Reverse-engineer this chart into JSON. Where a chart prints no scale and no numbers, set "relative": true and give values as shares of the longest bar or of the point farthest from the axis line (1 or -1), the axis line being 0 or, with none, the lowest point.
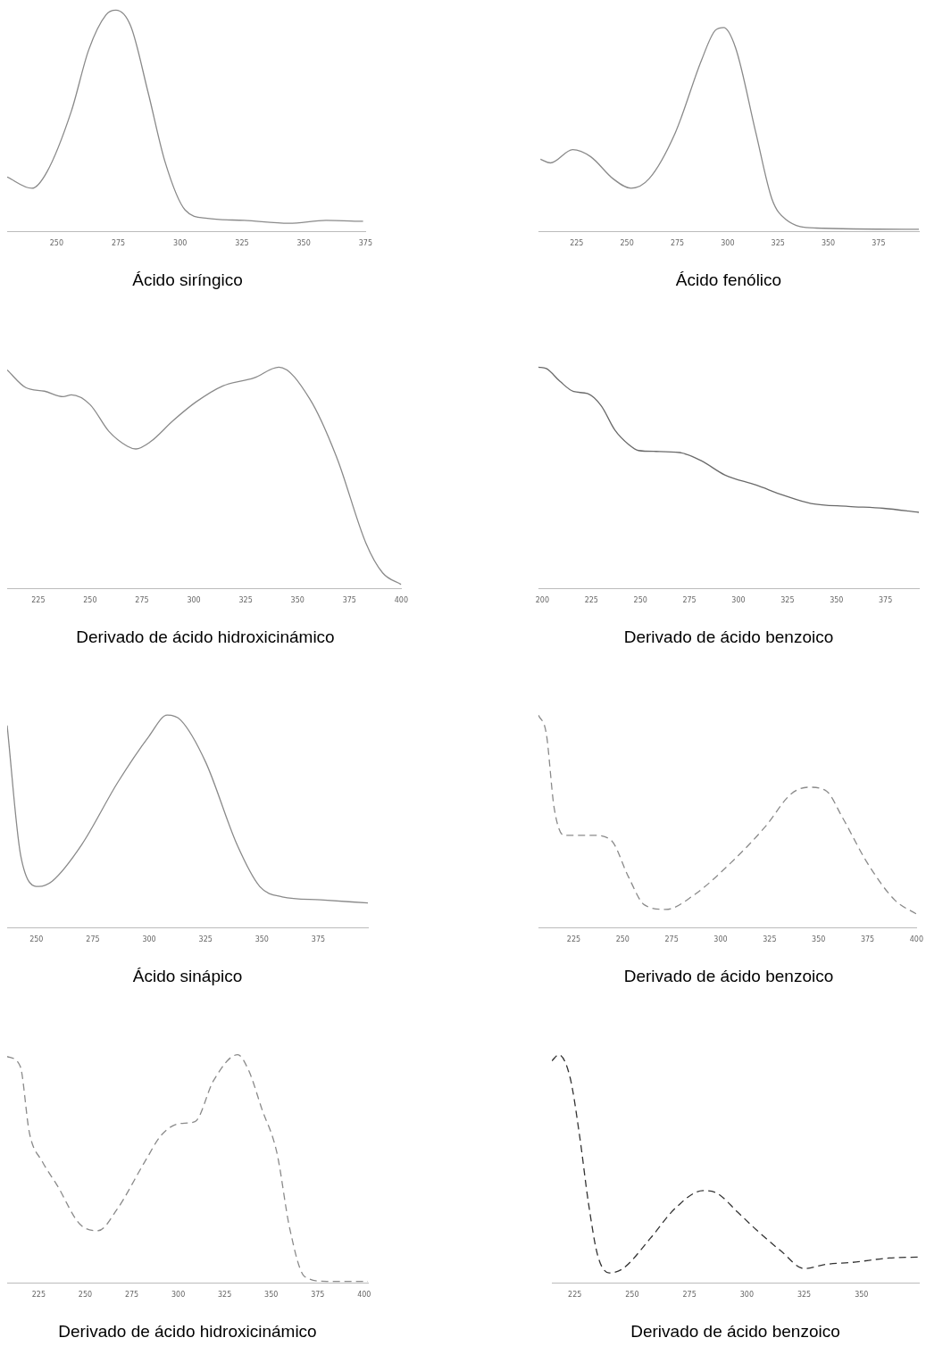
{
  "chart_data": [
    {
      "type": "line",
      "title": "Ácido siríngico",
      "relative": true,
      "tick_labels": "x",
      "marker": "none",
      "line_style": "solid",
      "grid": false,
      "legend": false,
      "xlim": [
        230,
        375
      ],
      "xticks": [
        250,
        275,
        300,
        325,
        350,
        375
      ],
      "series": [
        {
          "color": "#8a8a8a",
          "x": [
            230,
            240,
            246,
            256,
            263,
            270,
            274,
            280,
            287,
            294,
            302,
            311,
            326,
            344,
            359,
            374
          ],
          "values": [
            0.247,
            0.196,
            0.268,
            0.545,
            0.821,
            0.979,
            1,
            0.928,
            0.63,
            0.311,
            0.098,
            0.06,
            0.051,
            0.038,
            0.051,
            0.047
          ]
        }
      ]
    },
    {
      "type": "line",
      "title": "Ácido fenólico",
      "relative": true,
      "tick_labels": "x",
      "marker": "none",
      "line_style": "solid",
      "grid": false,
      "legend": false,
      "xlim": [
        206,
        395
      ],
      "xticks": [
        225,
        250,
        275,
        300,
        325,
        350,
        375
      ],
      "series": [
        {
          "color": "#8a8a8a",
          "x": [
            207,
            212,
            223,
            232,
            243,
            252,
            261,
            274,
            287,
            294,
            298,
            304,
            314,
            322,
            329,
            344,
            395
          ],
          "values": [
            0.355,
            0.337,
            0.402,
            0.367,
            0.26,
            0.213,
            0.26,
            0.485,
            0.84,
            0.988,
            1,
            0.899,
            0.485,
            0.16,
            0.059,
            0.018,
            0.012
          ]
        }
      ]
    },
    {
      "type": "line",
      "title": "Derivado de ácido hidroxicinámico",
      "relative": true,
      "tick_labels": "x",
      "marker": "none",
      "line_style": "solid",
      "grid": false,
      "legend": false,
      "xlim": [
        210,
        400
      ],
      "xticks": [
        225,
        250,
        275,
        300,
        325,
        350,
        375,
        400
      ],
      "series": [
        {
          "color": "#8a8a8a",
          "x": [
            210,
            219,
            228,
            237,
            241,
            250,
            259,
            268,
            272,
            279,
            290,
            301,
            314,
            329,
            341,
            356,
            369,
            383,
            391,
            400
          ],
          "values": [
            0.988,
            0.908,
            0.892,
            0.867,
            0.875,
            0.831,
            0.711,
            0.643,
            0.631,
            0.663,
            0.759,
            0.843,
            0.916,
            0.952,
            1,
            0.855,
            0.59,
            0.205,
            0.072,
            0.019
          ]
        }
      ]
    },
    {
      "type": "line",
      "title": "Derivado de ácido benzoico",
      "relative": true,
      "tick_labels": "x",
      "marker": "none",
      "line_style": "solid",
      "grid": false,
      "legend": false,
      "xlim": [
        198,
        392
      ],
      "xticks": [
        200,
        225,
        250,
        275,
        300,
        325,
        350,
        375
      ],
      "series": [
        {
          "color": "#6a6a6a",
          "x": [
            198,
            202,
            209,
            216,
            223,
            230,
            237,
            244,
            249,
            258,
            270,
            281,
            293,
            309,
            323,
            337,
            356,
            374,
            392
          ],
          "values": [
            1,
            0.994,
            0.936,
            0.89,
            0.881,
            0.826,
            0.716,
            0.651,
            0.624,
            0.62,
            0.615,
            0.578,
            0.514,
            0.468,
            0.422,
            0.385,
            0.372,
            0.363,
            0.345
          ]
        }
      ]
    },
    {
      "type": "line",
      "title": "Ácido sinápico",
      "relative": true,
      "tick_labels": "x",
      "marker": "none",
      "line_style": "solid",
      "grid": false,
      "legend": false,
      "xlim": [
        237,
        397
      ],
      "xticks": [
        250,
        275,
        300,
        325,
        350,
        375
      ],
      "series": [
        {
          "color": "#8a8a8a",
          "x": [
            237,
            243,
            251,
            257,
            270,
            286,
            300,
            308,
            314,
            325,
            339,
            349,
            359,
            376,
            397
          ],
          "values": [
            0.951,
            0.341,
            0.195,
            0.22,
            0.39,
            0.683,
            0.902,
            1,
            0.976,
            0.78,
            0.39,
            0.195,
            0.146,
            0.132,
            0.117
          ]
        }
      ]
    },
    {
      "type": "line",
      "title": "Derivado de ácido benzoico",
      "relative": true,
      "tick_labels": "x",
      "marker": "none",
      "line_style": "dashed",
      "grid": false,
      "legend": false,
      "xlim": [
        207,
        400
      ],
      "xticks": [
        225,
        250,
        275,
        300,
        325,
        350,
        375,
        400
      ],
      "series": [
        {
          "color": "#8a8a8a",
          "x": [
            207,
            211,
            215,
            220,
            226,
            235,
            244,
            253,
            261,
            272,
            286,
            305,
            323,
            336,
            345,
            354,
            362,
            375,
            389,
            400
          ],
          "values": [
            1,
            0.913,
            0.565,
            0.435,
            0.435,
            0.435,
            0.413,
            0.239,
            0.109,
            0.087,
            0.152,
            0.304,
            0.478,
            0.63,
            0.661,
            0.643,
            0.522,
            0.304,
            0.13,
            0.065
          ]
        }
      ]
    },
    {
      "type": "line",
      "title": "Derivado de ácido hidroxicinámico",
      "relative": true,
      "tick_labels": "x",
      "marker": "none",
      "line_style": "dashed",
      "grid": false,
      "legend": false,
      "xlim": [
        208,
        402
      ],
      "xticks": [
        225,
        250,
        275,
        300,
        325,
        350,
        375,
        400
      ],
      "series": [
        {
          "color": "#8a8a8a",
          "x": [
            208,
            215,
            220,
            227,
            235,
            247,
            257,
            267,
            282,
            291,
            301,
            309,
            319,
            332,
            338,
            345,
            353,
            360,
            368,
            380,
            402
          ],
          "values": [
            0.992,
            0.95,
            0.657,
            0.531,
            0.427,
            0.259,
            0.23,
            0.322,
            0.531,
            0.649,
            0.699,
            0.707,
            0.887,
            1,
            0.929,
            0.762,
            0.573,
            0.238,
            0.029,
            0.008,
            0.008
          ]
        }
      ]
    },
    {
      "type": "line",
      "title": "Derivado de ácido benzoico",
      "relative": true,
      "tick_labels": "x",
      "marker": "none",
      "line_style": "dashed",
      "grid": false,
      "legend": false,
      "xlim": [
        215,
        375
      ],
      "xticks": [
        225,
        250,
        275,
        300,
        325,
        350
      ],
      "series": [
        {
          "color": "#333333",
          "x": [
            215,
            218,
            223,
            227,
            231,
            235,
            240,
            246,
            258,
            269,
            281,
            287,
            296,
            304,
            315,
            325,
            335,
            346,
            362,
            375
          ],
          "values": [
            0.973,
            1,
            0.898,
            0.652,
            0.348,
            0.121,
            0.045,
            0.064,
            0.197,
            0.33,
            0.405,
            0.394,
            0.311,
            0.235,
            0.14,
            0.064,
            0.083,
            0.091,
            0.11,
            0.114
          ]
        }
      ]
    }
  ]
}
